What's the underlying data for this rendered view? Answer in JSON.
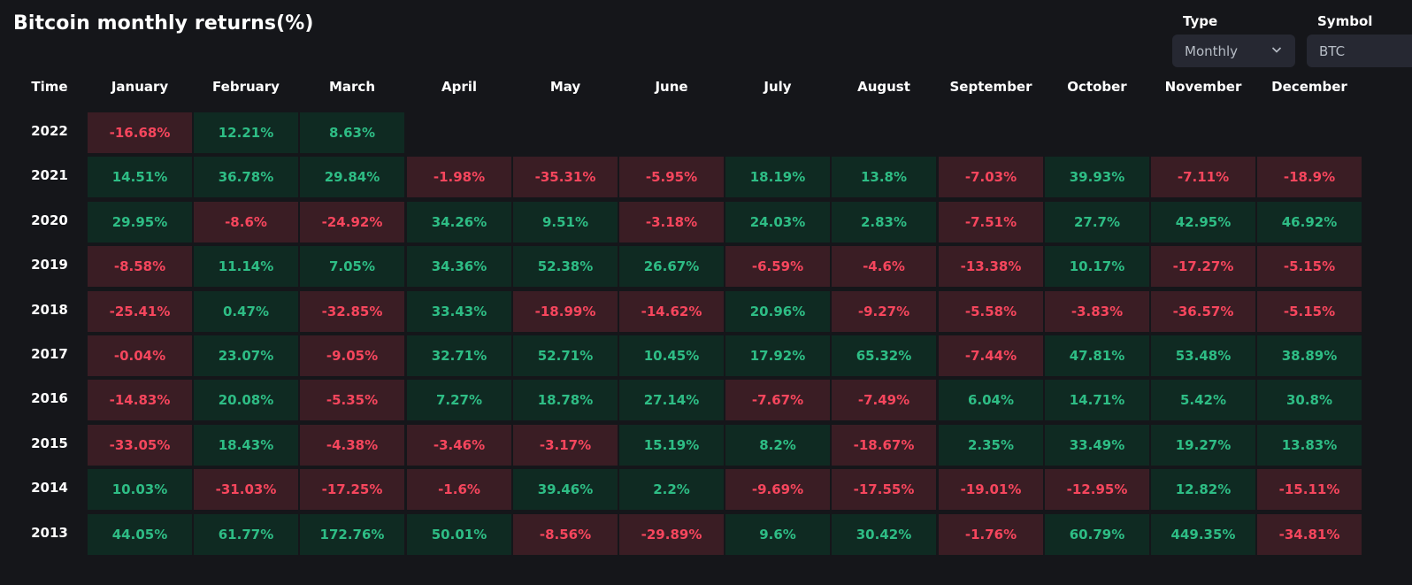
{
  "title": "Bitcoin monthly returns(%)",
  "filters": {
    "type_label": "Type",
    "type_value": "Monthly",
    "symbol_label": "Symbol",
    "symbol_value": "BTC"
  },
  "colors": {
    "positive_text": "#2ebd85",
    "negative_text": "#f6465d",
    "positive_bg": "#0f2a22",
    "negative_bg": "#3a1d24",
    "page_bg": "#15161a"
  },
  "table": {
    "time_header": "Time",
    "months": [
      "January",
      "February",
      "March",
      "April",
      "May",
      "June",
      "July",
      "August",
      "September",
      "October",
      "November",
      "December"
    ],
    "rows": [
      {
        "year": "2022",
        "values": [
          "-16.68%",
          "12.21%",
          "8.63%",
          null,
          null,
          null,
          null,
          null,
          null,
          null,
          null,
          null
        ]
      },
      {
        "year": "2021",
        "values": [
          "14.51%",
          "36.78%",
          "29.84%",
          "-1.98%",
          "-35.31%",
          "-5.95%",
          "18.19%",
          "13.8%",
          "-7.03%",
          "39.93%",
          "-7.11%",
          "-18.9%"
        ]
      },
      {
        "year": "2020",
        "values": [
          "29.95%",
          "-8.6%",
          "-24.92%",
          "34.26%",
          "9.51%",
          "-3.18%",
          "24.03%",
          "2.83%",
          "-7.51%",
          "27.7%",
          "42.95%",
          "46.92%"
        ]
      },
      {
        "year": "2019",
        "values": [
          "-8.58%",
          "11.14%",
          "7.05%",
          "34.36%",
          "52.38%",
          "26.67%",
          "-6.59%",
          "-4.6%",
          "-13.38%",
          "10.17%",
          "-17.27%",
          "-5.15%"
        ]
      },
      {
        "year": "2018",
        "values": [
          "-25.41%",
          "0.47%",
          "-32.85%",
          "33.43%",
          "-18.99%",
          "-14.62%",
          "20.96%",
          "-9.27%",
          "-5.58%",
          "-3.83%",
          "-36.57%",
          "-5.15%"
        ]
      },
      {
        "year": "2017",
        "values": [
          "-0.04%",
          "23.07%",
          "-9.05%",
          "32.71%",
          "52.71%",
          "10.45%",
          "17.92%",
          "65.32%",
          "-7.44%",
          "47.81%",
          "53.48%",
          "38.89%"
        ]
      },
      {
        "year": "2016",
        "values": [
          "-14.83%",
          "20.08%",
          "-5.35%",
          "7.27%",
          "18.78%",
          "27.14%",
          "-7.67%",
          "-7.49%",
          "6.04%",
          "14.71%",
          "5.42%",
          "30.8%"
        ]
      },
      {
        "year": "2015",
        "values": [
          "-33.05%",
          "18.43%",
          "-4.38%",
          "-3.46%",
          "-3.17%",
          "15.19%",
          "8.2%",
          "-18.67%",
          "2.35%",
          "33.49%",
          "19.27%",
          "13.83%"
        ]
      },
      {
        "year": "2014",
        "values": [
          "10.03%",
          "-31.03%",
          "-17.25%",
          "-1.6%",
          "39.46%",
          "2.2%",
          "-9.69%",
          "-17.55%",
          "-19.01%",
          "-12.95%",
          "12.82%",
          "-15.11%"
        ]
      },
      {
        "year": "2013",
        "values": [
          "44.05%",
          "61.77%",
          "172.76%",
          "50.01%",
          "-8.56%",
          "-29.89%",
          "9.6%",
          "30.42%",
          "-1.76%",
          "60.79%",
          "449.35%",
          "-34.81%"
        ]
      }
    ]
  }
}
